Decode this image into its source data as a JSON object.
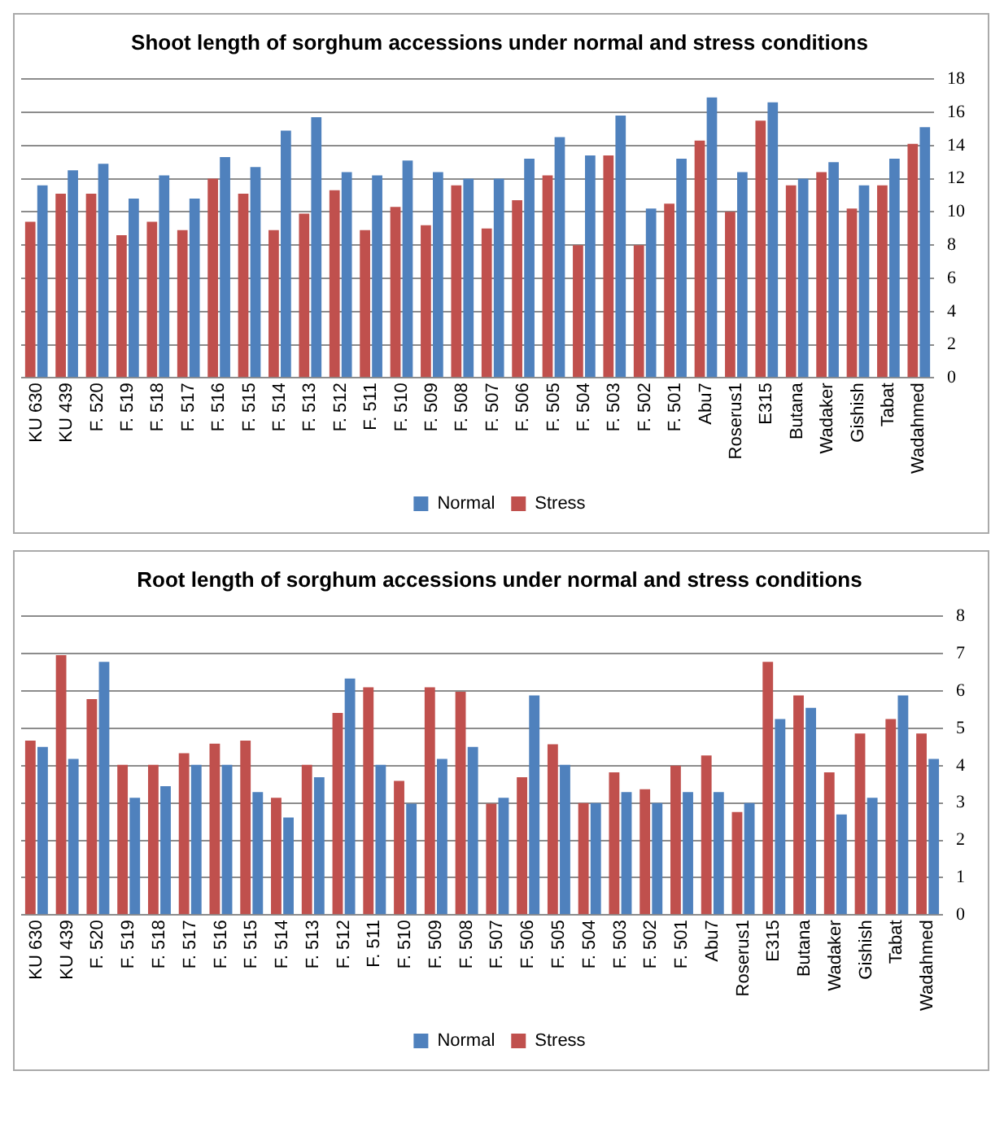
{
  "chart_data": [
    {
      "type": "bar",
      "title": "Shoot length of sorghum accessions under normal and stress conditions",
      "categories": [
        "KU 630",
        "KU 439",
        "F. 520",
        "F. 519",
        "F. 518",
        "F. 517",
        "F. 516",
        "F. 515",
        "F. 514",
        "F. 513",
        "F. 512",
        "F. 511",
        "F. 510",
        "F. 509",
        "F. 508",
        "F. 507",
        "F. 506",
        "F. 505",
        "F. 504",
        "F. 503",
        "F. 502",
        "F. 501",
        "Abu7",
        "Roserus1",
        "E315",
        "Butana",
        "Wadaker",
        "Gishish",
        "Tabat",
        "Wadahmed"
      ],
      "series": [
        {
          "name": "Stress",
          "color": "#c0504d",
          "values": [
            9.4,
            11.1,
            11.1,
            8.6,
            9.4,
            8.9,
            12.0,
            11.1,
            8.9,
            9.9,
            11.3,
            8.9,
            10.3,
            9.2,
            11.6,
            9.0,
            10.7,
            12.2,
            8.0,
            13.4,
            8.0,
            10.5,
            14.3,
            10.0,
            15.5,
            11.6,
            12.4,
            10.2,
            11.6,
            14.1
          ]
        },
        {
          "name": "Normal",
          "color": "#4f81bd",
          "values": [
            11.6,
            12.5,
            12.9,
            10.8,
            12.2,
            10.8,
            13.3,
            12.7,
            14.9,
            15.7,
            12.4,
            12.2,
            13.1,
            12.4,
            12.0,
            12.0,
            13.2,
            14.5,
            13.4,
            15.8,
            10.2,
            13.2,
            16.9,
            12.4,
            16.6,
            12.0,
            13.0,
            11.6,
            13.2,
            15.1
          ]
        }
      ],
      "ylim": [
        0,
        18
      ],
      "yticks": [
        0,
        2,
        4,
        6,
        8,
        10,
        12,
        14,
        16,
        18
      ],
      "grid": "y",
      "legend": "bottom"
    },
    {
      "type": "bar",
      "title": "Root length of sorghum accessions under normal and stress conditions",
      "categories": [
        "KU 630",
        "KU 439",
        "F. 520",
        "F. 519",
        "F. 518",
        "F. 517",
        "F. 516",
        "F. 515",
        "F. 514",
        "F. 513",
        "F. 512",
        "F. 511",
        "F. 510",
        "F. 509",
        "F. 508",
        "F. 507",
        "F. 506",
        "F. 505",
        "F. 504",
        "F. 503",
        "F. 502",
        "F. 501",
        "Abu7",
        "Roserus1",
        "E315",
        "Butana",
        "Wadaker",
        "Gishish",
        "Tabat",
        "Wadahmed"
      ],
      "series": [
        {
          "name": "Stress",
          "color": "#c0504d",
          "values": [
            4.67,
            6.96,
            5.78,
            4.02,
            4.02,
            4.33,
            4.59,
            4.67,
            3.14,
            4.02,
            5.41,
            6.1,
            3.59,
            6.1,
            5.98,
            2.98,
            3.69,
            4.57,
            3.0,
            3.82,
            3.37,
            4.0,
            4.27,
            2.76,
            6.78,
            5.88,
            3.82,
            4.86,
            5.25,
            4.86
          ]
        },
        {
          "name": "Normal",
          "color": "#4f81bd",
          "values": [
            4.5,
            4.18,
            6.78,
            3.14,
            3.45,
            4.02,
            4.02,
            3.29,
            2.61,
            3.69,
            6.33,
            4.02,
            2.98,
            4.18,
            4.5,
            3.14,
            5.88,
            4.02,
            3.0,
            3.29,
            3.0,
            3.29,
            3.29,
            3.0,
            5.25,
            5.55,
            2.69,
            3.14,
            5.88,
            4.18
          ]
        }
      ],
      "ylim": [
        0,
        8
      ],
      "yticks": [
        0,
        1,
        2,
        3,
        4,
        5,
        6,
        7,
        8
      ],
      "grid": "y",
      "legend": "bottom"
    }
  ]
}
